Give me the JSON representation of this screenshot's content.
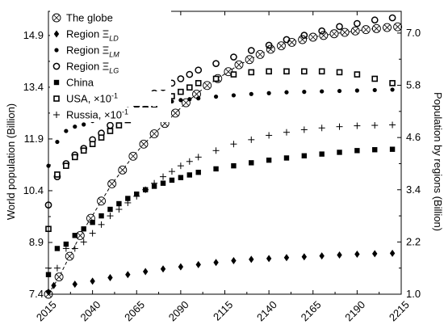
{
  "chart_data": {
    "type": "scatter",
    "xlim": [
      2015,
      2215
    ],
    "x_ticks": [
      "2015",
      "2040",
      "2065",
      "2090",
      "2115",
      "2140",
      "2165",
      "2190",
      "2215"
    ],
    "y_left": {
      "label": "World population (Billion)",
      "lim": [
        7.4,
        15.6
      ],
      "ticks": [
        "7.4",
        "8.9",
        "10.4",
        "11.9",
        "13.4",
        "14.9"
      ]
    },
    "y_right": {
      "label": "Population by regions (Billion)",
      "lim": [
        1.0,
        7.5
      ],
      "ticks": [
        "1.0",
        "2.2",
        "3.4",
        "4.6",
        "5.8",
        "7.0"
      ]
    },
    "legend_position": "top-left",
    "series": [
      {
        "name": "The globe",
        "axis": "left",
        "marker": "circle-x",
        "fit_line": "dashed",
        "points": [
          [
            2015,
            7.4
          ],
          [
            2021,
            7.9
          ],
          [
            2027,
            8.5
          ],
          [
            2033,
            9.1
          ],
          [
            2039,
            9.6
          ],
          [
            2045,
            10.1
          ],
          [
            2051,
            10.6
          ],
          [
            2057,
            11.0
          ],
          [
            2063,
            11.4
          ],
          [
            2069,
            11.75
          ],
          [
            2075,
            12.05
          ],
          [
            2081,
            12.35
          ],
          [
            2087,
            12.65
          ],
          [
            2093,
            12.95
          ],
          [
            2099,
            13.2
          ],
          [
            2105,
            13.45
          ],
          [
            2111,
            13.65
          ],
          [
            2117,
            13.85
          ],
          [
            2123,
            14.05
          ],
          [
            2129,
            14.2
          ],
          [
            2135,
            14.35
          ],
          [
            2141,
            14.5
          ],
          [
            2147,
            14.6
          ],
          [
            2153,
            14.7
          ],
          [
            2159,
            14.78
          ],
          [
            2165,
            14.85
          ],
          [
            2171,
            14.9
          ],
          [
            2177,
            14.95
          ],
          [
            2183,
            14.99
          ],
          [
            2189,
            15.03
          ],
          [
            2195,
            15.07
          ],
          [
            2201,
            15.1
          ],
          [
            2207,
            15.13
          ],
          [
            2213,
            15.15
          ]
        ]
      },
      {
        "name": "Region Ξ_LD",
        "axis": "right",
        "marker": "diamond",
        "points": [
          [
            2015,
            1.05
          ],
          [
            2018,
            1.2
          ],
          [
            2030,
            1.23
          ],
          [
            2040,
            1.3
          ],
          [
            2050,
            1.38
          ],
          [
            2060,
            1.45
          ],
          [
            2070,
            1.52
          ],
          [
            2080,
            1.58
          ],
          [
            2090,
            1.63
          ],
          [
            2100,
            1.68
          ],
          [
            2110,
            1.73
          ],
          [
            2120,
            1.77
          ],
          [
            2130,
            1.8
          ],
          [
            2140,
            1.82
          ],
          [
            2150,
            1.84
          ],
          [
            2160,
            1.86
          ],
          [
            2170,
            1.88
          ],
          [
            2180,
            1.9
          ],
          [
            2190,
            1.92
          ],
          [
            2200,
            1.93
          ],
          [
            2210,
            1.94
          ]
        ]
      },
      {
        "name": "Region Ξ_LM",
        "axis": "right",
        "marker": "dot",
        "points": [
          [
            2015,
            3.95
          ],
          [
            2020,
            4.5
          ],
          [
            2025,
            4.75
          ],
          [
            2030,
            4.85
          ],
          [
            2035,
            4.9
          ],
          [
            2040,
            4.98
          ],
          [
            2045,
            5.08
          ],
          [
            2050,
            5.15
          ],
          [
            2055,
            5.2
          ],
          [
            2060,
            5.25
          ],
          [
            2065,
            5.3
          ],
          [
            2070,
            5.33
          ],
          [
            2075,
            5.37
          ],
          [
            2080,
            5.4
          ],
          [
            2085,
            5.43
          ],
          [
            2090,
            5.46
          ],
          [
            2095,
            5.48
          ],
          [
            2100,
            5.5
          ],
          [
            2110,
            5.54
          ],
          [
            2120,
            5.57
          ],
          [
            2130,
            5.6
          ],
          [
            2140,
            5.62
          ],
          [
            2150,
            5.64
          ],
          [
            2160,
            5.65
          ],
          [
            2170,
            5.66
          ],
          [
            2180,
            5.67
          ],
          [
            2190,
            5.68
          ],
          [
            2200,
            5.69
          ],
          [
            2210,
            5.7
          ]
        ]
      },
      {
        "name": "Region Ξ_LG",
        "axis": "right",
        "marker": "circle",
        "points": [
          [
            2015,
            3.05
          ],
          [
            2020,
            3.7
          ],
          [
            2025,
            4.0
          ],
          [
            2030,
            4.2
          ],
          [
            2035,
            4.35
          ],
          [
            2040,
            4.55
          ],
          [
            2045,
            4.7
          ],
          [
            2050,
            4.88
          ],
          [
            2055,
            5.05
          ],
          [
            2060,
            5.2
          ],
          [
            2065,
            5.35
          ],
          [
            2070,
            5.5
          ],
          [
            2075,
            5.62
          ],
          [
            2080,
            5.75
          ],
          [
            2085,
            5.85
          ],
          [
            2090,
            5.95
          ],
          [
            2095,
            6.05
          ],
          [
            2100,
            6.15
          ],
          [
            2110,
            6.3
          ],
          [
            2120,
            6.45
          ],
          [
            2130,
            6.6
          ],
          [
            2140,
            6.72
          ],
          [
            2150,
            6.85
          ],
          [
            2160,
            6.95
          ],
          [
            2170,
            7.05
          ],
          [
            2180,
            7.15
          ],
          [
            2190,
            7.22
          ],
          [
            2200,
            7.3
          ],
          [
            2210,
            7.35
          ]
        ]
      },
      {
        "name": "China",
        "axis": "right",
        "marker": "square",
        "points": [
          [
            2015,
            1.45
          ],
          [
            2020,
            2.05
          ],
          [
            2025,
            2.15
          ],
          [
            2030,
            2.35
          ],
          [
            2035,
            2.5
          ],
          [
            2040,
            2.65
          ],
          [
            2045,
            2.8
          ],
          [
            2050,
            2.95
          ],
          [
            2055,
            3.08
          ],
          [
            2060,
            3.2
          ],
          [
            2065,
            3.3
          ],
          [
            2070,
            3.4
          ],
          [
            2075,
            3.48
          ],
          [
            2080,
            3.55
          ],
          [
            2085,
            3.62
          ],
          [
            2090,
            3.68
          ],
          [
            2095,
            3.74
          ],
          [
            2100,
            3.8
          ],
          [
            2110,
            3.88
          ],
          [
            2120,
            3.95
          ],
          [
            2130,
            4.02
          ],
          [
            2140,
            4.08
          ],
          [
            2150,
            4.13
          ],
          [
            2160,
            4.18
          ],
          [
            2170,
            4.22
          ],
          [
            2180,
            4.26
          ],
          [
            2190,
            4.3
          ],
          [
            2200,
            4.32
          ],
          [
            2210,
            4.33
          ]
        ]
      },
      {
        "name": "USA, ×10⁻¹",
        "axis": "right",
        "marker": "square-open",
        "points": [
          [
            2015,
            2.5
          ],
          [
            2020,
            3.75
          ],
          [
            2025,
            3.95
          ],
          [
            2030,
            4.15
          ],
          [
            2035,
            4.3
          ],
          [
            2040,
            4.45
          ],
          [
            2045,
            4.6
          ],
          [
            2050,
            4.75
          ],
          [
            2055,
            4.88
          ],
          [
            2060,
            5.0
          ],
          [
            2065,
            5.12
          ],
          [
            2070,
            5.25
          ],
          [
            2075,
            5.35
          ],
          [
            2080,
            5.45
          ],
          [
            2085,
            5.55
          ],
          [
            2090,
            5.65
          ],
          [
            2095,
            5.75
          ],
          [
            2100,
            5.85
          ],
          [
            2110,
            5.95
          ],
          [
            2120,
            6.05
          ],
          [
            2130,
            6.1
          ],
          [
            2140,
            6.12
          ],
          [
            2150,
            6.12
          ],
          [
            2160,
            6.12
          ],
          [
            2170,
            6.12
          ],
          [
            2180,
            6.1
          ],
          [
            2190,
            6.05
          ],
          [
            2200,
            5.95
          ],
          [
            2210,
            5.85
          ]
        ]
      },
      {
        "name": "Russia, ×10⁻¹",
        "axis": "right",
        "marker": "plus",
        "points": [
          [
            2015,
            1.6
          ],
          [
            2020,
            1.6
          ],
          [
            2025,
            2.05
          ],
          [
            2030,
            2.05
          ],
          [
            2035,
            2.2
          ],
          [
            2040,
            2.4
          ],
          [
            2045,
            2.6
          ],
          [
            2050,
            2.8
          ],
          [
            2055,
            2.95
          ],
          [
            2060,
            3.1
          ],
          [
            2065,
            3.25
          ],
          [
            2070,
            3.4
          ],
          [
            2075,
            3.55
          ],
          [
            2080,
            3.7
          ],
          [
            2085,
            3.82
          ],
          [
            2090,
            3.95
          ],
          [
            2095,
            4.05
          ],
          [
            2100,
            4.15
          ],
          [
            2110,
            4.3
          ],
          [
            2120,
            4.45
          ],
          [
            2130,
            4.55
          ],
          [
            2140,
            4.65
          ],
          [
            2150,
            4.72
          ],
          [
            2160,
            4.78
          ],
          [
            2170,
            4.82
          ],
          [
            2180,
            4.85
          ],
          [
            2190,
            4.87
          ],
          [
            2200,
            4.88
          ],
          [
            2210,
            4.89
          ]
        ]
      }
    ],
    "legend": [
      {
        "prefix": "The globe",
        "sub": ""
      },
      {
        "prefix": "Region Ξ",
        "sub": "LD"
      },
      {
        "prefix": "Region Ξ",
        "sub": "LM"
      },
      {
        "prefix": "Region Ξ",
        "sub": "LG"
      },
      {
        "prefix": "China",
        "sub": ""
      },
      {
        "prefix": "USA, ×10",
        "sup": "-1"
      },
      {
        "prefix": "Russia, ×10",
        "sup": "-1"
      }
    ]
  }
}
